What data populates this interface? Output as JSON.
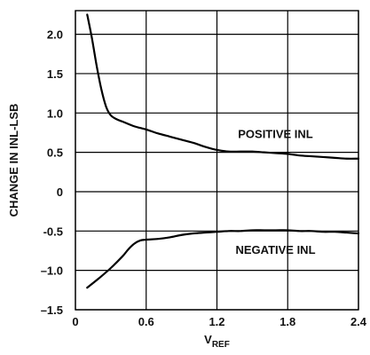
{
  "chart_data": {
    "type": "line",
    "title": "",
    "xlabel": "V",
    "xlabel_subscript": "REF",
    "ylabel": "CHANGE IN INL-LSB",
    "xlim": [
      0,
      2.4
    ],
    "ylim": [
      -1.5,
      2.3
    ],
    "x_ticks": [
      0,
      0.6,
      1.2,
      1.8,
      2.4
    ],
    "x_tick_labels": [
      "0",
      "0.6",
      "1.2",
      "1.8",
      "2.4"
    ],
    "y_ticks": [
      -1.5,
      -1.0,
      -0.5,
      0,
      0.5,
      1.0,
      1.5,
      2.0
    ],
    "y_tick_labels": [
      "–1.5",
      "–1.0",
      "-0.5",
      "0",
      "0.5",
      "1.0",
      "1.5",
      "2.0"
    ],
    "grid": true,
    "series": [
      {
        "name": "POSITIVE INL",
        "x": [
          0.1,
          0.14,
          0.18,
          0.22,
          0.26,
          0.3,
          0.35,
          0.4,
          0.5,
          0.6,
          0.7,
          0.8,
          0.9,
          1.0,
          1.1,
          1.2,
          1.3,
          1.4,
          1.5,
          1.6,
          1.7,
          1.8,
          1.9,
          2.0,
          2.1,
          2.2,
          2.3,
          2.4
        ],
        "y": [
          2.25,
          1.95,
          1.6,
          1.3,
          1.08,
          0.97,
          0.92,
          0.89,
          0.83,
          0.79,
          0.74,
          0.7,
          0.66,
          0.62,
          0.57,
          0.53,
          0.51,
          0.51,
          0.51,
          0.5,
          0.49,
          0.48,
          0.46,
          0.45,
          0.44,
          0.43,
          0.42,
          0.42
        ]
      },
      {
        "name": "NEGATIVE INL",
        "x": [
          0.1,
          0.2,
          0.3,
          0.4,
          0.45,
          0.5,
          0.55,
          0.6,
          0.7,
          0.8,
          0.9,
          1.0,
          1.1,
          1.2,
          1.3,
          1.4,
          1.5,
          1.6,
          1.7,
          1.8,
          1.9,
          2.0,
          2.1,
          2.2,
          2.3,
          2.4
        ],
        "y": [
          -1.22,
          -1.1,
          -0.97,
          -0.82,
          -0.73,
          -0.66,
          -0.62,
          -0.61,
          -0.6,
          -0.58,
          -0.55,
          -0.53,
          -0.52,
          -0.51,
          -0.5,
          -0.5,
          -0.49,
          -0.49,
          -0.49,
          -0.49,
          -0.5,
          -0.5,
          -0.51,
          -0.51,
          -0.52,
          -0.53
        ]
      }
    ]
  }
}
